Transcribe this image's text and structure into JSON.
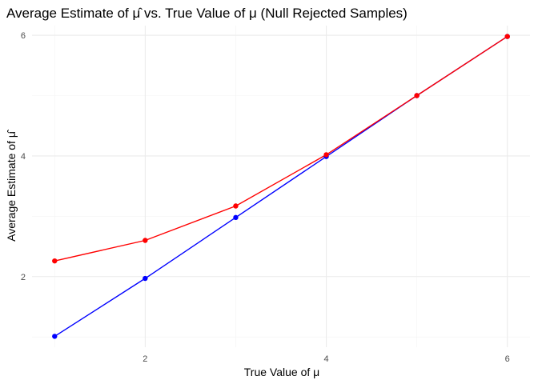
{
  "chart_data": {
    "type": "line",
    "title": "Average Estimate of μ̂ vs. True Value of μ (Null Rejected Samples)",
    "xlabel": "True Value of μ",
    "ylabel": "Average Estimate of μ̂",
    "x": [
      1,
      2,
      3,
      4,
      5,
      6
    ],
    "xlim": [
      0.75,
      6.25
    ],
    "ylim": [
      0.83,
      6.16
    ],
    "x_ticks": [
      2,
      4,
      6
    ],
    "y_ticks": [
      2,
      4,
      6
    ],
    "x_minor": [
      1,
      3,
      5
    ],
    "y_minor": [
      1,
      3,
      5
    ],
    "grid": true,
    "series": [
      {
        "color": "#0000ff",
        "values": [
          1.01,
          1.97,
          2.98,
          3.99,
          5.0,
          5.98
        ]
      },
      {
        "color": "#ff0000",
        "values": [
          2.26,
          2.6,
          3.17,
          4.02,
          5.0,
          5.98
        ]
      }
    ]
  }
}
